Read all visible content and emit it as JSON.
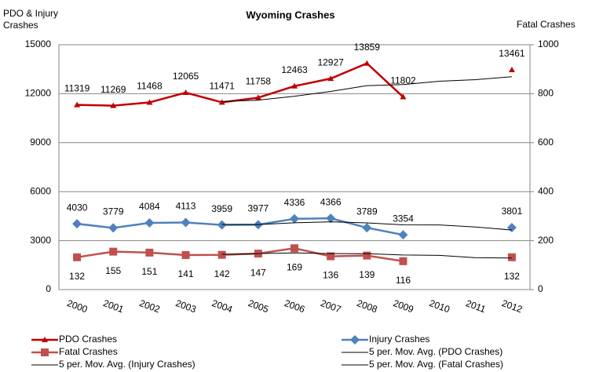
{
  "chart_data": {
    "type": "line",
    "title": "Wyoming Crashes",
    "y_label": "PDO & Injury Crashes",
    "y2_label": "Fatal Crashes",
    "categories": [
      "2000",
      "2001",
      "2002",
      "2003",
      "2004",
      "2005",
      "2006",
      "2007",
      "2008",
      "2009",
      "2010",
      "2011",
      "2012"
    ],
    "series": [
      {
        "name": "PDO Crashes",
        "color": "#c00000",
        "marker": "triangle",
        "values": [
          11319,
          11269,
          11468,
          12065,
          11471,
          11758,
          12463,
          12927,
          13859,
          11802,
          null,
          null,
          13461
        ]
      },
      {
        "name": "Injury Crashes",
        "color": "#4f81bd",
        "marker": "diamond",
        "values": [
          4030,
          3779,
          4084,
          4113,
          3959,
          3977,
          4336,
          4366,
          3789,
          3354,
          null,
          null,
          3801
        ]
      },
      {
        "name": "Fatal Crashes",
        "color": "#c0504d",
        "marker": "square",
        "axis": "y2",
        "values": [
          132,
          155,
          151,
          141,
          142,
          147,
          169,
          136,
          139,
          116,
          null,
          null,
          132
        ]
      },
      {
        "name": "5 per. Mov. Avg. (PDO Crashes)",
        "color": "#000000",
        "marker": "none",
        "values": [
          null,
          null,
          null,
          null,
          11518,
          11606,
          11845,
          12137,
          12496,
          12562,
          12763,
          12863,
          13041
        ]
      },
      {
        "name": "5 per. Mov. Avg. (Injury Crashes)",
        "color": "#000000",
        "marker": "none",
        "values": [
          null,
          null,
          null,
          null,
          3993,
          3982,
          4094,
          4150,
          4085,
          3964,
          3961,
          3836,
          3648
        ]
      },
      {
        "name": "5 per. Mov. Avg. (Fatal Crashes)",
        "color": "#000000",
        "marker": "none",
        "axis": "y2",
        "values": [
          null,
          null,
          null,
          null,
          144.2,
          147.2,
          150,
          147,
          146.6,
          141.4,
          140,
          130.3,
          129
        ]
      }
    ],
    "ylim": [
      0,
      15000
    ],
    "yticks": [
      0,
      3000,
      6000,
      9000,
      12000,
      15000
    ],
    "y2lim": [
      0,
      1000
    ],
    "y2ticks": [
      0,
      200,
      400,
      600,
      800,
      1000
    ],
    "grid": true,
    "legend": "bottom"
  }
}
